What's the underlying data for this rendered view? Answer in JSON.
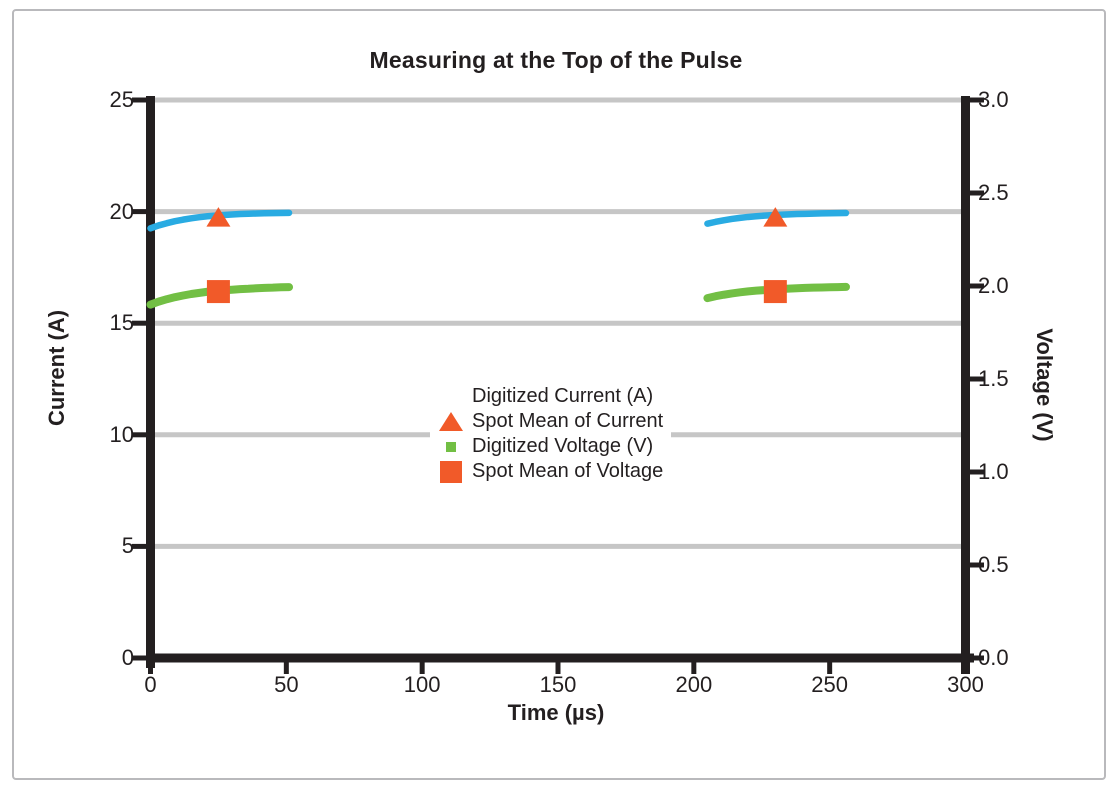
{
  "chart_data": {
    "type": "line",
    "title": "Measuring at the Top of the Pulse",
    "x_axis": {
      "label": "Time (µs)",
      "range": [
        0,
        300
      ],
      "tick_values": [
        0,
        50,
        100,
        150,
        200,
        250,
        300
      ],
      "tick_labels": [
        "0",
        "50",
        "100",
        "150",
        "200",
        "250",
        "300"
      ]
    },
    "y_left": {
      "label": "Current (A)",
      "range": [
        0,
        25
      ],
      "tick_values": [
        0,
        5,
        10,
        15,
        20,
        25
      ],
      "tick_labels": [
        "0",
        "5",
        "10",
        "15",
        "20",
        "25"
      ]
    },
    "y_right": {
      "label": "Voltage (V)",
      "range": [
        0,
        3
      ],
      "tick_values": [
        0,
        0.5,
        1.0,
        1.5,
        2.0,
        2.5,
        3.0
      ],
      "tick_labels": [
        "0.0",
        "0.5",
        "1.0",
        "1.5",
        "2.0",
        "2.5",
        "3.0"
      ]
    },
    "grid": {
      "show": true,
      "gridline_values_left_axis": [
        5,
        10,
        15,
        20,
        25
      ],
      "color": "#c6c6c6"
    },
    "legend_position": "center",
    "series": [
      {
        "name": "Digitized Current (A)",
        "axis": "left",
        "kind": "line",
        "color": "#29abe2",
        "stroke_width": 6.5,
        "legend_marker": "diamond-small",
        "segments": [
          [
            [
              0,
              19.25
            ],
            [
              3,
              19.38
            ],
            [
              6,
              19.48
            ],
            [
              9,
              19.57
            ],
            [
              12,
              19.64
            ],
            [
              15,
              19.7
            ],
            [
              18,
              19.75
            ],
            [
              21,
              19.79
            ],
            [
              24,
              19.82
            ],
            [
              27,
              19.85
            ],
            [
              30,
              19.87
            ],
            [
              33,
              19.89
            ],
            [
              36,
              19.905
            ],
            [
              39,
              19.915
            ],
            [
              42,
              19.925
            ],
            [
              45,
              19.932
            ],
            [
              48,
              19.94
            ],
            [
              51,
              19.945
            ]
          ],
          [
            [
              205,
              19.46
            ],
            [
              208,
              19.54
            ],
            [
              211,
              19.61
            ],
            [
              214,
              19.67
            ],
            [
              217,
              19.72
            ],
            [
              220,
              19.76
            ],
            [
              223,
              19.79
            ],
            [
              226,
              19.82
            ],
            [
              229,
              19.84
            ],
            [
              232,
              19.86
            ],
            [
              235,
              19.875
            ],
            [
              238,
              19.89
            ],
            [
              241,
              19.9
            ],
            [
              244,
              19.91
            ],
            [
              247,
              19.92
            ],
            [
              250,
              19.925
            ],
            [
              253,
              19.93
            ],
            [
              256,
              19.935
            ]
          ]
        ]
      },
      {
        "name": "Spot Mean of Current",
        "axis": "left",
        "kind": "scatter",
        "color": "#f15a29",
        "marker": "triangle",
        "legend_marker": "triangle",
        "points": [
          [
            25,
            19.75
          ],
          [
            230,
            19.75
          ]
        ]
      },
      {
        "name": "Digitized Voltage (V)",
        "axis": "right",
        "kind": "line",
        "color": "#72bf44",
        "stroke_width": 8,
        "legend_marker": "square-small",
        "segments": [
          [
            [
              0,
              1.9
            ],
            [
              3,
              1.916
            ],
            [
              6,
              1.929
            ],
            [
              9,
              1.94
            ],
            [
              12,
              1.949
            ],
            [
              15,
              1.957
            ],
            [
              18,
              1.963
            ],
            [
              21,
              1.969
            ],
            [
              24,
              1.973
            ],
            [
              27,
              1.977
            ],
            [
              30,
              1.98
            ],
            [
              33,
              1.983
            ],
            [
              36,
              1.985
            ],
            [
              39,
              1.988
            ],
            [
              42,
              1.99
            ],
            [
              45,
              1.991
            ],
            [
              48,
              1.993
            ],
            [
              51,
              1.994
            ]
          ],
          [
            [
              205,
              1.935
            ],
            [
              208,
              1.945
            ],
            [
              211,
              1.953
            ],
            [
              214,
              1.96
            ],
            [
              217,
              1.966
            ],
            [
              220,
              1.971
            ],
            [
              223,
              1.975
            ],
            [
              226,
              1.978
            ],
            [
              229,
              1.981
            ],
            [
              232,
              1.984
            ],
            [
              235,
              1.986
            ],
            [
              238,
              1.988
            ],
            [
              241,
              1.99
            ],
            [
              244,
              1.991
            ],
            [
              247,
              1.992
            ],
            [
              250,
              1.993
            ],
            [
              253,
              1.994
            ],
            [
              256,
              1.995
            ]
          ]
        ]
      },
      {
        "name": "Spot Mean of Voltage",
        "axis": "right",
        "kind": "scatter",
        "color": "#f15a29",
        "marker": "square",
        "legend_marker": "square-large",
        "points": [
          [
            25,
            1.97
          ],
          [
            230,
            1.97
          ]
        ]
      }
    ],
    "colors": {
      "axis": "#231f20",
      "text": "#231f20",
      "gridline": "#c6c6c6",
      "digitized_current": "#29abe2",
      "digitized_voltage": "#72bf44",
      "spot_mean": "#f15a29",
      "frame_border": "#b9b9bc"
    }
  }
}
